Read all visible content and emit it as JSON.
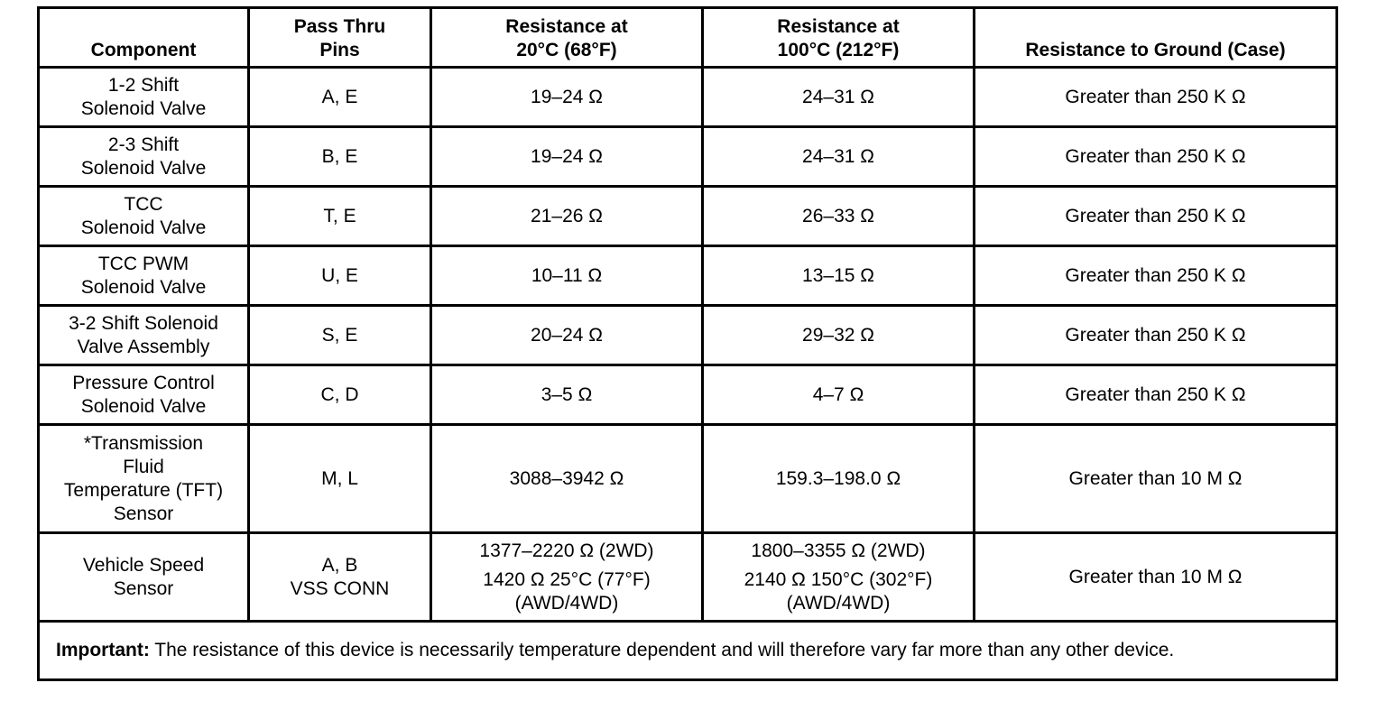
{
  "headers": [
    "Component",
    "Pass Thru Pins",
    "Resistance at 20°C (68°F)",
    "Resistance at 100°C (212°F)",
    "Resistance to Ground (Case)"
  ],
  "header_lines": {
    "component": [
      "Component"
    ],
    "pins": [
      "Pass Thru",
      "Pins"
    ],
    "r20": [
      "Resistance at",
      "20°C (68°F)"
    ],
    "r100": [
      "Resistance at",
      "100°C (212°F)"
    ],
    "ground": [
      "Resistance to Ground (Case)"
    ]
  },
  "rows": [
    {
      "component": [
        "1-2 Shift",
        "Solenoid Valve"
      ],
      "pins": [
        "A, E"
      ],
      "r20": "19–24 Ω",
      "r100": "24–31 Ω",
      "ground": "Greater than 250 K Ω"
    },
    {
      "component": [
        "2-3 Shift",
        "Solenoid Valve"
      ],
      "pins": [
        "B, E"
      ],
      "r20": "19–24 Ω",
      "r100": "24–31 Ω",
      "ground": "Greater than 250 K Ω"
    },
    {
      "component": [
        "TCC",
        "Solenoid Valve"
      ],
      "pins": [
        "T, E"
      ],
      "r20": "21–26 Ω",
      "r100": "26–33 Ω",
      "ground": "Greater than 250 K Ω"
    },
    {
      "component": [
        "TCC PWM",
        "Solenoid Valve"
      ],
      "pins": [
        "U, E"
      ],
      "r20": "10–11 Ω",
      "r100": "13–15 Ω",
      "ground": "Greater than 250 K Ω"
    },
    {
      "component": [
        "3-2 Shift Solenoid",
        "Valve Assembly"
      ],
      "pins": [
        "S, E"
      ],
      "r20": "20–24 Ω",
      "r100": "29–32 Ω",
      "ground": "Greater than 250 K Ω"
    },
    {
      "component": [
        "Pressure Control",
        "Solenoid Valve"
      ],
      "pins": [
        "C, D"
      ],
      "r20": "3–5 Ω",
      "r100": "4–7 Ω",
      "ground": "Greater than 250 K Ω"
    },
    {
      "component": [
        "*Transmission",
        "Fluid",
        "Temperature (TFT)",
        "Sensor"
      ],
      "pins": [
        "M, L"
      ],
      "r20": "3088–3942 Ω",
      "r100": "159.3–198.0 Ω",
      "ground": "Greater than 10 M Ω"
    }
  ],
  "vss_row": {
    "component": [
      "Vehicle Speed",
      "Sensor"
    ],
    "pins": [
      "A, B",
      "VSS CONN"
    ],
    "r20": [
      "1377–2220 Ω (2WD)",
      "1420 Ω 25°C (77°F)",
      "(AWD/4WD)"
    ],
    "r100": [
      "1800–3355 Ω (2WD)",
      "2140 Ω 150°C (302°F)",
      "(AWD/4WD)"
    ],
    "ground": "Greater than 10 M Ω"
  },
  "note": {
    "label": "Important:",
    "text": " The resistance of this device is necessarily temperature dependent and will therefore vary far more than any other device."
  }
}
